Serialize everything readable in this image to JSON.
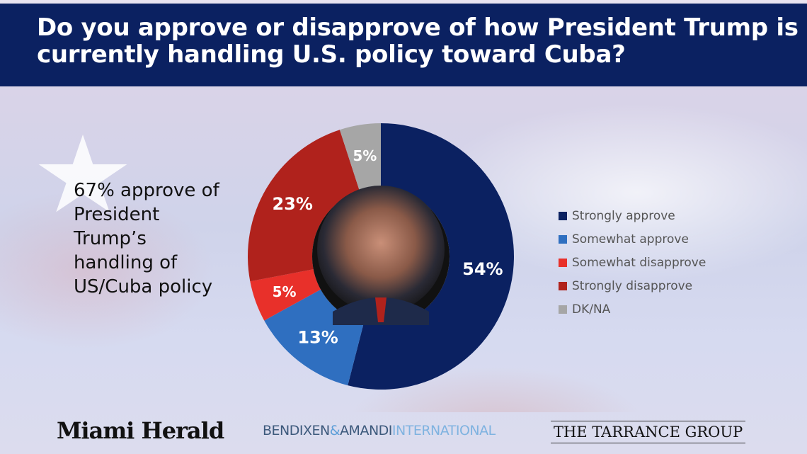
{
  "header": {
    "title": "Do you approve or disapprove of how President Trump is currently handling U.S. policy toward Cuba?"
  },
  "note": "67% approve of President Trump’s handling of US/Cuba policy",
  "chart_data": {
    "type": "pie",
    "donut": true,
    "start": "top",
    "direction": "clockwise",
    "categories": [
      "Strongly approve",
      "Somewhat approve",
      "Somewhat disapprove",
      "Strongly disapprove",
      "DK/NA"
    ],
    "values": [
      54,
      13,
      5,
      23,
      5
    ],
    "labels": [
      "54%",
      "13%",
      "5%",
      "23%",
      "5%"
    ],
    "colors": [
      "#0b2161",
      "#2f6fc0",
      "#e8302a",
      "#b0221c",
      "#a6a6a6"
    ],
    "legend": "right",
    "center_image": "portrait of President Trump"
  },
  "logos": {
    "miami_herald": "Miami Herald",
    "bendixen": "BENDIXEN",
    "amp": "&",
    "amandi": "AMANDI",
    "international": "INTERNATIONAL",
    "tarrance": "THE TARRANCE GROUP"
  }
}
